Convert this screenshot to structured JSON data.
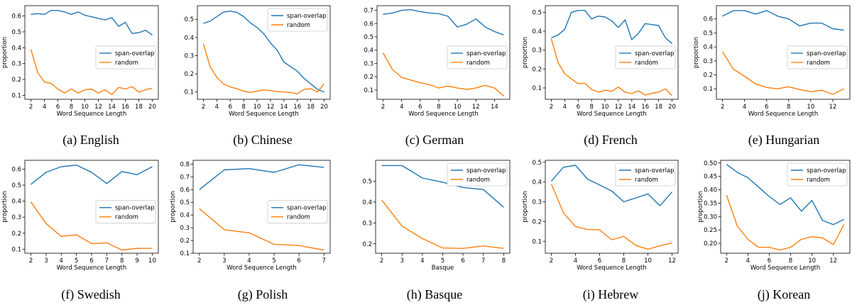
{
  "series_colors": {
    "span-overlap": "#1f77b4",
    "random": "#ff7f0e"
  },
  "chart_data": [
    {
      "type": "line",
      "caption": "(a) English",
      "xlabel": "Word Sequence Length",
      "ylabel": "proportion",
      "xlim": [
        1.1,
        20.9
      ],
      "ylim": [
        0.075,
        0.665
      ],
      "xticks": [
        2,
        4,
        6,
        8,
        10,
        12,
        14,
        16,
        18,
        20
      ],
      "yticks": [
        0.1,
        0.2,
        0.3,
        0.4,
        0.5,
        0.6
      ],
      "ytick_labels": [
        "0.1",
        "0.2",
        "0.3",
        "0.4",
        "0.5",
        "0.6"
      ],
      "legend": "center-right",
      "legend_y": 0.28,
      "x": [
        2,
        3,
        4,
        5,
        6,
        7,
        8,
        9,
        10,
        11,
        12,
        13,
        14,
        15,
        16,
        17,
        18,
        19,
        20
      ],
      "series": [
        {
          "name": "span-overlap",
          "values": [
            0.61,
            0.615,
            0.61,
            0.635,
            0.635,
            0.625,
            0.61,
            0.625,
            0.605,
            0.595,
            0.585,
            0.575,
            0.59,
            0.535,
            0.56,
            0.49,
            0.495,
            0.51,
            0.48
          ]
        },
        {
          "name": "random",
          "values": [
            0.39,
            0.245,
            0.185,
            0.175,
            0.14,
            0.115,
            0.14,
            0.115,
            0.135,
            0.14,
            0.115,
            0.135,
            0.105,
            0.15,
            0.14,
            0.155,
            0.12,
            0.135,
            0.145
          ]
        }
      ]
    },
    {
      "type": "line",
      "caption": "(b) Chinese",
      "xlabel": "Word Sequence Length",
      "ylabel": "",
      "xlim": [
        1.1,
        20.9
      ],
      "ylim": [
        0.06,
        0.575
      ],
      "xticks": [
        2,
        4,
        6,
        8,
        10,
        12,
        14,
        16,
        18,
        20
      ],
      "yticks": [
        0.1,
        0.2,
        0.3,
        0.4,
        0.5
      ],
      "ytick_labels": [
        "0.1",
        "0.2",
        "0.3",
        "0.4",
        "0.5"
      ],
      "legend": "upper-right",
      "legend_y": 0.06,
      "x": [
        2,
        3,
        4,
        5,
        6,
        7,
        8,
        9,
        10,
        11,
        12,
        13,
        14,
        15,
        16,
        17,
        18,
        19,
        20
      ],
      "series": [
        {
          "name": "span-overlap",
          "values": [
            0.478,
            0.49,
            0.515,
            0.54,
            0.545,
            0.538,
            0.515,
            0.48,
            0.455,
            0.42,
            0.37,
            0.33,
            0.265,
            0.24,
            0.215,
            0.175,
            0.145,
            0.115,
            0.1
          ]
        },
        {
          "name": "random",
          "values": [
            0.365,
            0.24,
            0.18,
            0.145,
            0.128,
            0.118,
            0.105,
            0.098,
            0.105,
            0.112,
            0.108,
            0.102,
            0.1,
            0.098,
            0.09,
            0.115,
            0.118,
            0.1,
            0.145
          ]
        }
      ]
    },
    {
      "type": "line",
      "caption": "(c) German",
      "xlabel": "Word Sequence Length",
      "ylabel": "",
      "xlim": [
        1.35,
        15.65
      ],
      "ylim": [
        0.03,
        0.735
      ],
      "xticks": [
        2,
        4,
        6,
        8,
        10,
        12,
        14
      ],
      "yticks": [
        0.1,
        0.2,
        0.3,
        0.4,
        0.5,
        0.6,
        0.7
      ],
      "ytick_labels": [
        "0.1",
        "0.2",
        "0.3",
        "0.4",
        "0.5",
        "0.6",
        "0.7"
      ],
      "legend": "center-right",
      "legend_y": 0.28,
      "x": [
        2,
        3,
        4,
        5,
        6,
        7,
        8,
        9,
        10,
        11,
        12,
        13,
        14,
        15
      ],
      "series": [
        {
          "name": "span-overlap",
          "values": [
            0.67,
            0.68,
            0.7,
            0.705,
            0.69,
            0.68,
            0.675,
            0.655,
            0.575,
            0.595,
            0.635,
            0.575,
            0.54,
            0.515
          ]
        },
        {
          "name": "random",
          "values": [
            0.38,
            0.255,
            0.195,
            0.175,
            0.155,
            0.14,
            0.115,
            0.13,
            0.115,
            0.105,
            0.115,
            0.135,
            0.115,
            0.055
          ]
        }
      ]
    },
    {
      "type": "line",
      "caption": "(d) French",
      "xlabel": "Word Sequence Length",
      "ylabel": "proportion",
      "xlim": [
        1.1,
        20.9
      ],
      "ylim": [
        0.04,
        0.535
      ],
      "xticks": [
        2,
        4,
        6,
        8,
        10,
        12,
        14,
        16,
        18,
        20
      ],
      "yticks": [
        0.1,
        0.2,
        0.3,
        0.4,
        0.5
      ],
      "ytick_labels": [
        "0.1",
        "0.2",
        "0.3",
        "0.4",
        "0.5"
      ],
      "legend": "center-right",
      "legend_y": 0.28,
      "x": [
        2,
        3,
        4,
        5,
        6,
        7,
        8,
        9,
        10,
        11,
        12,
        13,
        14,
        15,
        16,
        17,
        18,
        19,
        20
      ],
      "series": [
        {
          "name": "span-overlap",
          "values": [
            0.365,
            0.38,
            0.41,
            0.5,
            0.51,
            0.51,
            0.465,
            0.48,
            0.475,
            0.455,
            0.42,
            0.46,
            0.355,
            0.39,
            0.44,
            0.435,
            0.43,
            0.365,
            0.335
          ]
        },
        {
          "name": "random",
          "values": [
            0.36,
            0.235,
            0.175,
            0.148,
            0.122,
            0.125,
            0.092,
            0.078,
            0.088,
            0.082,
            0.105,
            0.078,
            0.07,
            0.085,
            0.062,
            0.072,
            0.078,
            0.095,
            0.06
          ]
        }
      ]
    },
    {
      "type": "line",
      "caption": "(e) Hungarian",
      "xlabel": "Word Sequence Length",
      "ylabel": "proportion",
      "xlim": [
        1.45,
        13.55
      ],
      "ylim": [
        0.025,
        0.695
      ],
      "xticks": [
        2,
        4,
        6,
        8,
        10,
        12
      ],
      "yticks": [
        0.1,
        0.2,
        0.3,
        0.4,
        0.5,
        0.6
      ],
      "ytick_labels": [
        "0.1",
        "0.2",
        "0.3",
        "0.4",
        "0.5",
        "0.6"
      ],
      "legend": "center-right",
      "legend_y": 0.28,
      "x": [
        2,
        3,
        4,
        5,
        6,
        7,
        8,
        9,
        10,
        11,
        12,
        13
      ],
      "series": [
        {
          "name": "span-overlap",
          "values": [
            0.62,
            0.66,
            0.66,
            0.635,
            0.66,
            0.62,
            0.6,
            0.55,
            0.57,
            0.57,
            0.53,
            0.52
          ]
        },
        {
          "name": "random",
          "values": [
            0.365,
            0.24,
            0.19,
            0.135,
            0.11,
            0.1,
            0.115,
            0.095,
            0.08,
            0.09,
            0.06,
            0.1
          ]
        }
      ]
    },
    {
      "type": "line",
      "caption": "(f) Swedish",
      "xlabel": "Word Sequence Length",
      "ylabel": "proportion",
      "xlim": [
        1.6,
        10.4
      ],
      "ylim": [
        0.075,
        0.655
      ],
      "xticks": [
        2,
        3,
        4,
        5,
        6,
        7,
        8,
        9,
        10
      ],
      "yticks": [
        0.1,
        0.2,
        0.3,
        0.4,
        0.5,
        0.6
      ],
      "ytick_labels": [
        "0.1",
        "0.2",
        "0.3",
        "0.4",
        "0.5",
        "0.6"
      ],
      "legend": "center-right",
      "legend_y": 0.28,
      "x": [
        2,
        3,
        4,
        5,
        6,
        7,
        8,
        9,
        10
      ],
      "series": [
        {
          "name": "span-overlap",
          "values": [
            0.505,
            0.58,
            0.615,
            0.625,
            0.58,
            0.51,
            0.585,
            0.565,
            0.615
          ]
        },
        {
          "name": "random",
          "values": [
            0.395,
            0.26,
            0.18,
            0.19,
            0.135,
            0.14,
            0.095,
            0.105,
            0.105
          ]
        }
      ]
    },
    {
      "type": "line",
      "caption": "(g) Polish",
      "xlabel": "Word Sequence Length",
      "ylabel": "proportion",
      "xlim": [
        1.75,
        7.25
      ],
      "ylim": [
        0.1,
        0.83
      ],
      "xticks": [
        2,
        3,
        4,
        5,
        6,
        7
      ],
      "yticks": [
        0.1,
        0.2,
        0.3,
        0.4,
        0.5,
        0.6,
        0.7,
        0.8
      ],
      "ytick_labels": [
        "0.1",
        "0.2",
        "0.3",
        "0.4",
        "0.5",
        "0.6",
        "0.7",
        "0.8"
      ],
      "legend": "center-right",
      "legend_y": 0.28,
      "x": [
        2,
        3,
        4,
        5,
        6,
        7
      ],
      "series": [
        {
          "name": "span-overlap",
          "values": [
            0.6,
            0.755,
            0.765,
            0.735,
            0.795,
            0.775
          ]
        },
        {
          "name": "random",
          "values": [
            0.45,
            0.285,
            0.26,
            0.17,
            0.16,
            0.125
          ]
        }
      ]
    },
    {
      "type": "line",
      "caption": "(h) Basque",
      "xlabel": "Basque",
      "ylabel": "",
      "xlim": [
        1.7,
        8.3
      ],
      "ylim": [
        0.155,
        0.6
      ],
      "xticks": [
        2,
        3,
        4,
        5,
        6,
        7,
        8
      ],
      "yticks": [
        0.2,
        0.3,
        0.4,
        0.5
      ],
      "ytick_labels": [
        "0.2",
        "0.3",
        "0.4",
        "0.5"
      ],
      "legend": "upper-right",
      "legend_y": 0.06,
      "x": [
        2,
        3,
        4,
        5,
        6,
        7,
        8
      ],
      "series": [
        {
          "name": "span-overlap",
          "values": [
            0.575,
            0.575,
            0.515,
            0.495,
            0.47,
            0.46,
            0.375
          ]
        },
        {
          "name": "random",
          "values": [
            0.41,
            0.285,
            0.225,
            0.18,
            0.178,
            0.19,
            0.178
          ]
        }
      ]
    },
    {
      "type": "line",
      "caption": "(i) Hebrew",
      "xlabel": "Word Sequence Length",
      "ylabel": "proportion",
      "xlim": [
        1.5,
        12.5
      ],
      "ylim": [
        0.04,
        0.51
      ],
      "xticks": [
        2,
        4,
        6,
        8,
        10,
        12
      ],
      "yticks": [
        0.1,
        0.2,
        0.3,
        0.4,
        0.5
      ],
      "ytick_labels": [
        "0.1",
        "0.2",
        "0.3",
        "0.4",
        "0.5"
      ],
      "legend": "upper-right",
      "legend_y": 0.06,
      "x": [
        2,
        3,
        4,
        5,
        6,
        7,
        8,
        9,
        10,
        11,
        12
      ],
      "series": [
        {
          "name": "span-overlap",
          "values": [
            0.405,
            0.475,
            0.485,
            0.415,
            0.385,
            0.355,
            0.3,
            0.32,
            0.34,
            0.28,
            0.35
          ]
        },
        {
          "name": "random",
          "values": [
            0.39,
            0.245,
            0.175,
            0.16,
            0.158,
            0.108,
            0.125,
            0.08,
            0.06,
            0.078,
            0.092
          ]
        }
      ]
    },
    {
      "type": "line",
      "caption": "(j) Korean",
      "xlabel": "Word Sequence Length",
      "ylabel": "proportion",
      "xlim": [
        1.45,
        13.55
      ],
      "ylim": [
        0.163,
        0.51
      ],
      "xticks": [
        2,
        4,
        6,
        8,
        10,
        12
      ],
      "yticks": [
        0.2,
        0.25,
        0.3,
        0.35,
        0.4,
        0.45,
        0.5
      ],
      "ytick_labels": [
        "0.20",
        "0.25",
        "0.30",
        "0.35",
        "0.40",
        "0.45",
        "0.50"
      ],
      "legend": "upper-right",
      "legend_y": 0.06,
      "x": [
        2,
        3,
        4,
        5,
        6,
        7,
        8,
        9,
        10,
        11,
        12,
        13
      ],
      "series": [
        {
          "name": "span-overlap",
          "values": [
            0.495,
            0.465,
            0.445,
            0.41,
            0.375,
            0.345,
            0.37,
            0.32,
            0.36,
            0.285,
            0.27,
            0.29
          ]
        },
        {
          "name": "random",
          "values": [
            0.38,
            0.265,
            0.215,
            0.185,
            0.185,
            0.175,
            0.185,
            0.215,
            0.225,
            0.22,
            0.195,
            0.27
          ]
        }
      ]
    }
  ]
}
